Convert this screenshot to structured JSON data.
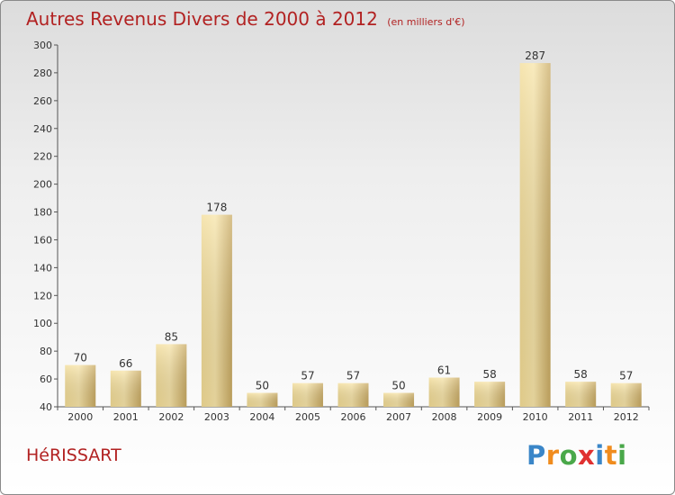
{
  "header": {
    "title": "Autres Revenus Divers de 2000 à 2012",
    "subtitle": "(en milliers d'€)"
  },
  "footer": {
    "commune": "HéRISSART",
    "logo": [
      "P",
      "r",
      "o",
      "x",
      "i",
      "t",
      "i"
    ],
    "logo_colors": [
      "#3a86c8",
      "#f08c1e",
      "#4aa84a",
      "#e03030",
      "#3a86c8",
      "#f08c1e",
      "#4aa84a"
    ]
  },
  "colors": {
    "title": "#b22222",
    "bar_light": "#f7e2a0",
    "bar_dark": "#c8a860",
    "axis": "#555555",
    "grid": "#cccccc"
  },
  "chart_data": {
    "type": "bar",
    "title": "Autres Revenus Divers de 2000 à 2012",
    "subtitle": "(en milliers d'€)",
    "categories": [
      "2000",
      "2001",
      "2002",
      "2003",
      "2004",
      "2005",
      "2006",
      "2007",
      "2008",
      "2009",
      "2010",
      "2011",
      "2012"
    ],
    "values": [
      70,
      66,
      85,
      178,
      50,
      57,
      57,
      50,
      61,
      58,
      287,
      58,
      57
    ],
    "ylim": [
      40,
      300
    ],
    "yticks": [
      40,
      60,
      80,
      100,
      120,
      140,
      160,
      180,
      200,
      220,
      240,
      260,
      280,
      300
    ],
    "xlabel": "",
    "ylabel": "",
    "grid": false,
    "data_labels": true
  }
}
